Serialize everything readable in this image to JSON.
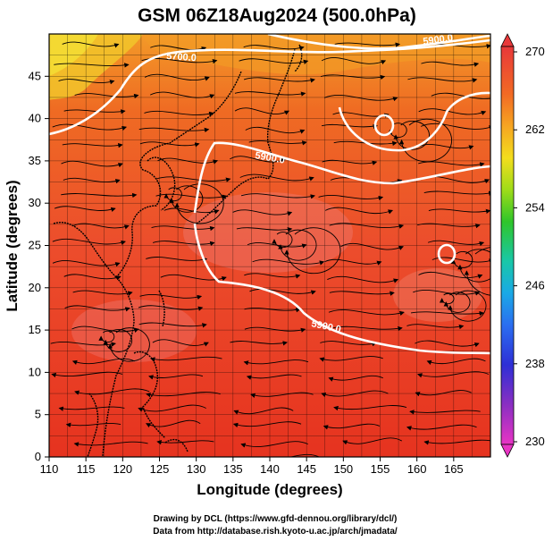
{
  "title": "GSM 06Z18Aug2024 (500.0hPa)",
  "xlabel": "Longitude (degrees)",
  "ylabel": "Latitude  (degrees)",
  "x_ticks": [
    "110",
    "115",
    "120",
    "125",
    "130",
    "135",
    "140",
    "145",
    "150",
    "155",
    "160",
    "165"
  ],
  "y_ticks": [
    "0",
    "5",
    "10",
    "15",
    "20",
    "25",
    "30",
    "35",
    "40",
    "45"
  ],
  "colorbar_ticks": [
    "270",
    "262",
    "254",
    "246",
    "238",
    "230"
  ],
  "contour_labels": [
    "5900.0",
    "5900.0",
    "5900.0",
    "5700.0"
  ],
  "credit_line1": "Drawing by DCL (https://www.gfd-dennou.org/library/dcl/)",
  "credit_line2": "Data from http://database.rish.kyoto-u.ac.jp/arch/jmadata/",
  "map": {
    "lon_range": [
      110,
      170
    ],
    "lat_range": [
      0,
      50
    ],
    "field_colors": {
      "warm": "#e94a2a",
      "orange": "#f07a20",
      "yellow": "#f4d21a",
      "pink": "#e96a6a"
    },
    "contour_color": "#ffffff"
  }
}
